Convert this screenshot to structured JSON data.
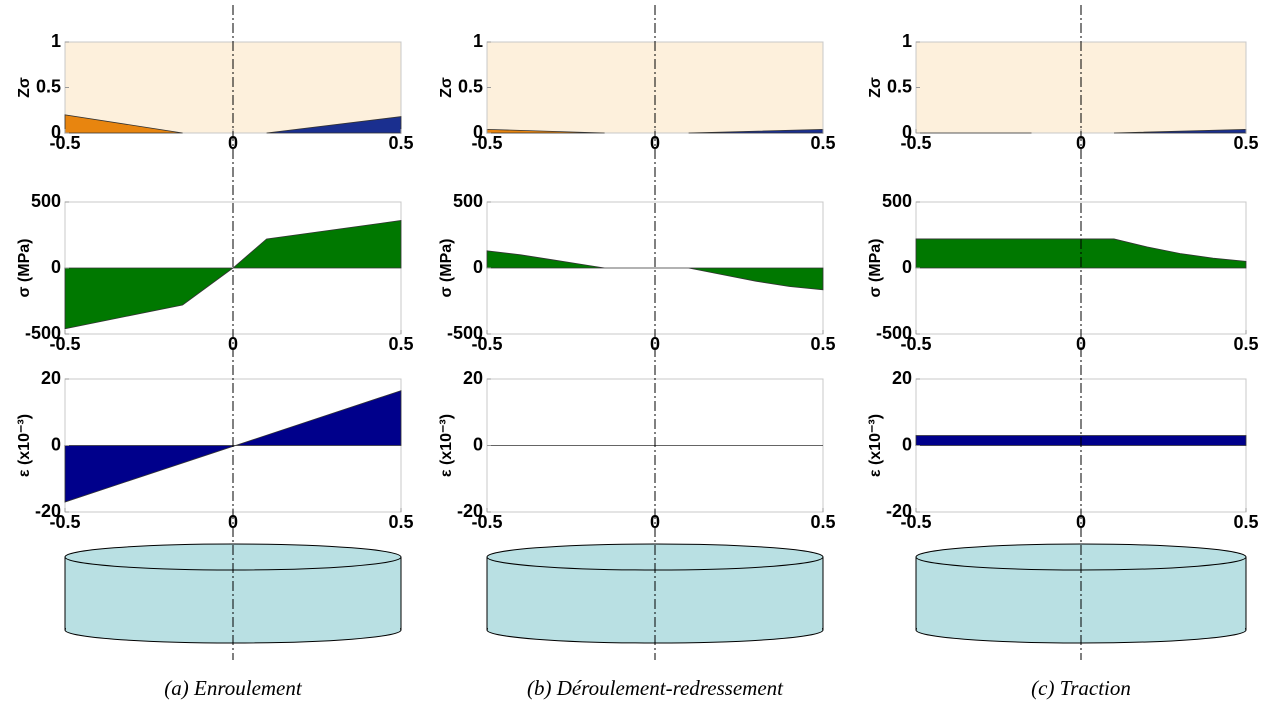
{
  "chart_data": [
    {
      "type": "area",
      "ylabel": "Zσ",
      "x": [
        -0.5,
        -0.15,
        0.1,
        0.5
      ],
      "xlim": [
        -0.5,
        0.5
      ],
      "xticks": [
        -0.5,
        0,
        0.5
      ],
      "ylim": [
        0,
        1
      ],
      "yticks": [
        0,
        0.5,
        1
      ],
      "background": "#fdf0dc",
      "series": [
        {
          "color": "#e8850f",
          "values": [
            0.2,
            0,
            null,
            null
          ]
        },
        {
          "color": "#1a2f8f",
          "values": [
            null,
            null,
            0,
            0.18
          ]
        }
      ]
    },
    {
      "type": "area",
      "ylabel": "Zσ",
      "x": [
        -0.5,
        -0.15,
        0.1,
        0.5
      ],
      "xlim": [
        -0.5,
        0.5
      ],
      "xticks": [
        -0.5,
        0,
        0.5
      ],
      "ylim": [
        0,
        1
      ],
      "yticks": [
        0,
        0.5,
        1
      ],
      "background": "#fdf0dc",
      "series": [
        {
          "color": "#e8850f",
          "values": [
            0.04,
            0,
            null,
            null
          ]
        },
        {
          "color": "#1a2f8f",
          "values": [
            null,
            null,
            0,
            0.04
          ]
        }
      ]
    },
    {
      "type": "area",
      "ylabel": "Zσ",
      "x": [
        -0.5,
        -0.15,
        0.1,
        0.5
      ],
      "xlim": [
        -0.5,
        0.5
      ],
      "xticks": [
        -0.5,
        0,
        0.5
      ],
      "ylim": [
        0,
        1
      ],
      "yticks": [
        0,
        0.5,
        1
      ],
      "background": "#fdf0dc",
      "series": [
        {
          "color": "#e8850f",
          "values": [
            0,
            0,
            null,
            null
          ]
        },
        {
          "color": "#1a2f8f",
          "values": [
            null,
            null,
            0,
            0.04
          ]
        }
      ]
    },
    {
      "type": "area",
      "ylabel": "σ (MPa)",
      "x": [
        -0.5,
        -0.15,
        0,
        0.1,
        0.5
      ],
      "xlim": [
        -0.5,
        0.5
      ],
      "xticks": [
        -0.5,
        0,
        0.5
      ],
      "ylim": [
        -500,
        500
      ],
      "yticks": [
        -500,
        0,
        500
      ],
      "background": "#ffffff",
      "series": [
        {
          "color": "#007800",
          "values": [
            -460,
            -280,
            0,
            220,
            360
          ]
        }
      ]
    },
    {
      "type": "area",
      "ylabel": "σ (MPa)",
      "x": [
        -0.5,
        -0.4,
        -0.3,
        -0.2,
        -0.15,
        0.1,
        0.2,
        0.3,
        0.4,
        0.5
      ],
      "xlim": [
        -0.5,
        0.5
      ],
      "xticks": [
        -0.5,
        0,
        0.5
      ],
      "ylim": [
        -500,
        500
      ],
      "yticks": [
        -500,
        0,
        500
      ],
      "background": "#ffffff",
      "series": [
        {
          "color": "#007800",
          "values": [
            130,
            100,
            60,
            20,
            0,
            0,
            -50,
            -100,
            -140,
            -165
          ]
        }
      ]
    },
    {
      "type": "area",
      "ylabel": "σ (MPa)",
      "x": [
        -0.5,
        0.1,
        0.2,
        0.3,
        0.4,
        0.5
      ],
      "xlim": [
        -0.5,
        0.5
      ],
      "xticks": [
        -0.5,
        0,
        0.5
      ],
      "ylim": [
        -500,
        500
      ],
      "yticks": [
        -500,
        0,
        500
      ],
      "background": "#ffffff",
      "series": [
        {
          "color": "#007800",
          "values": [
            220,
            220,
            160,
            110,
            75,
            50
          ]
        }
      ]
    },
    {
      "type": "area",
      "ylabel": "ε (x10⁻³)",
      "x": [
        -0.5,
        0.5
      ],
      "xlim": [
        -0.5,
        0.5
      ],
      "xticks": [
        -0.5,
        0,
        0.5
      ],
      "ylim": [
        -20,
        20
      ],
      "yticks": [
        -20,
        0,
        20
      ],
      "background": "#ffffff",
      "series": [
        {
          "color": "#00008b",
          "values": [
            -17,
            16.5
          ]
        }
      ]
    },
    {
      "type": "area",
      "ylabel": "ε (x10⁻³)",
      "x": [
        -0.5,
        0.5
      ],
      "xlim": [
        -0.5,
        0.5
      ],
      "xticks": [
        -0.5,
        0,
        0.5
      ],
      "ylim": [
        -20,
        20
      ],
      "yticks": [
        -20,
        0,
        20
      ],
      "background": "#ffffff",
      "series": [
        {
          "color": "#00008b",
          "values": [
            0,
            0
          ]
        }
      ]
    },
    {
      "type": "area",
      "ylabel": "ε (x10⁻³)",
      "x": [
        -0.5,
        0.5
      ],
      "xlim": [
        -0.5,
        0.5
      ],
      "xticks": [
        -0.5,
        0,
        0.5
      ],
      "ylim": [
        -20,
        20
      ],
      "yticks": [
        -20,
        0,
        20
      ],
      "background": "#ffffff",
      "series": [
        {
          "color": "#00008b",
          "values": [
            3,
            3
          ]
        }
      ]
    }
  ],
  "captions": [
    "(a) Enroulement",
    "(b) Déroulement-redressement",
    "(c) Traction"
  ]
}
